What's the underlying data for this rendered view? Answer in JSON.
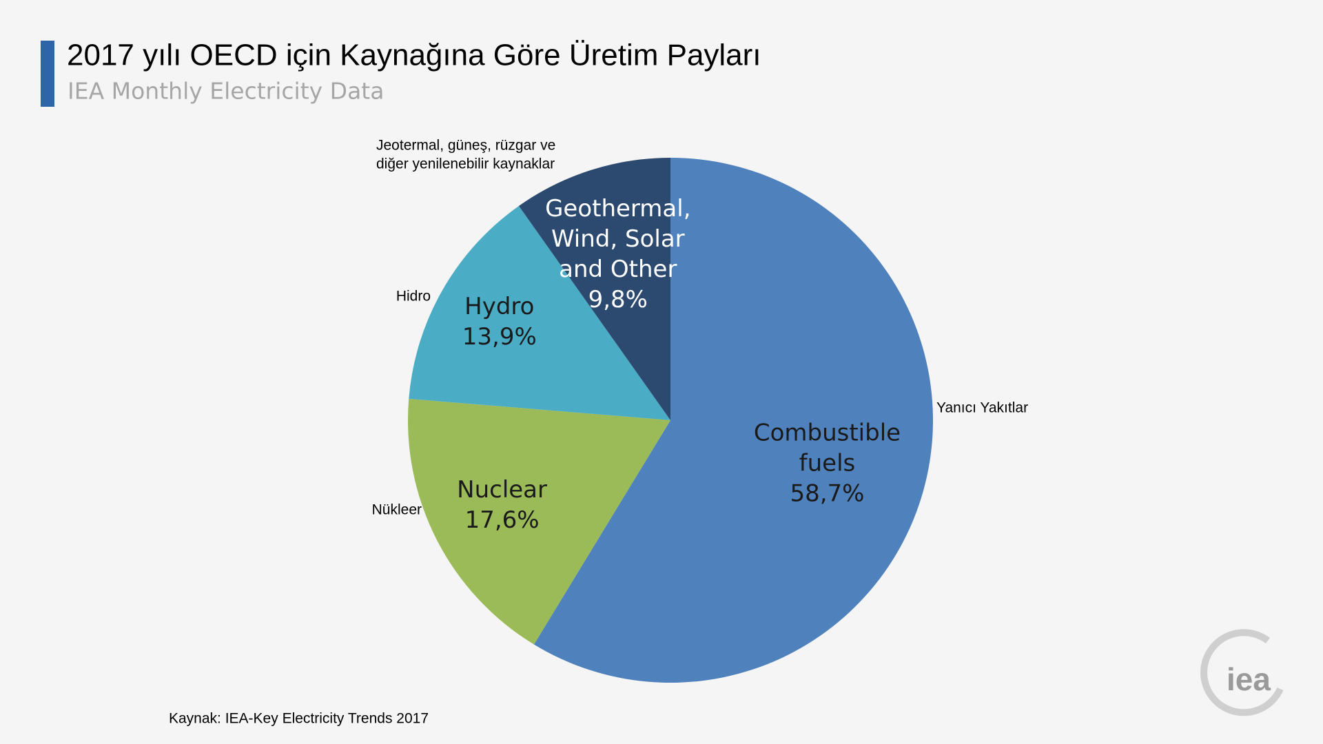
{
  "chart_data": {
    "type": "pie",
    "title": "2017 yılı OECD için Kaynağına Göre Üretim Payları",
    "subtitle": "IEA Monthly Electricity Data",
    "categories": [
      [
        "Combustible",
        "fuels"
      ],
      [
        "Nuclear"
      ],
      [
        "Hydro"
      ],
      [
        "Geothermal,",
        "Wind, Solar",
        "and Other"
      ]
    ],
    "outer_labels": [
      [
        "Yanıcı Yakıtlar"
      ],
      [
        "Nükleer"
      ],
      [
        "Hidro"
      ],
      [
        "Jeotermal, güneş, rüzgar ve",
        "diğer yenilenebilir kaynaklar"
      ]
    ],
    "values": [
      58.7,
      17.6,
      13.9,
      9.8
    ],
    "value_labels": [
      "58,7%",
      "17,6%",
      "13,9%",
      "9,8%"
    ],
    "colors": [
      "#4f81bd",
      "#9bbb59",
      "#4bacc6",
      "#2c4a70"
    ],
    "label_colors": [
      "#1a1a1a",
      "#1a1a1a",
      "#1a1a1a",
      "#ffffff"
    ],
    "source": "Kaynak: IEA-Key Electricity Trends 2017",
    "logo": "iea"
  }
}
